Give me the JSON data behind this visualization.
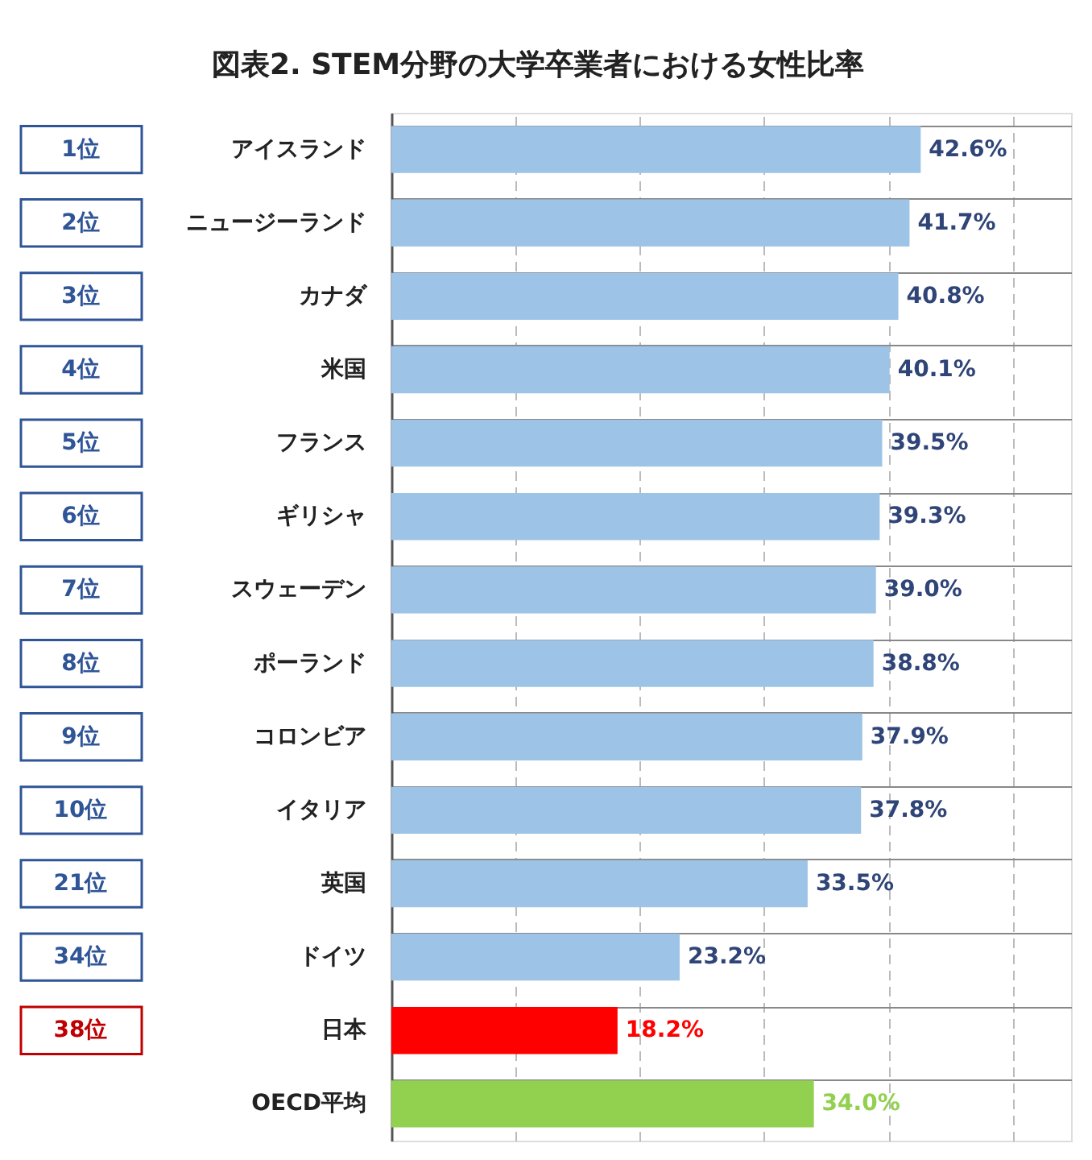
{
  "chart_data": {
    "type": "bar",
    "orientation": "horizontal",
    "title": "図表2. STEM分野の大学卒業者における女性比率",
    "categories": [
      "アイスランド",
      "ニュージーランド",
      "カナダ",
      "米国",
      "フランス",
      "ギリシャ",
      "スウェーデン",
      "ポーランド",
      "コロンビア",
      "イタリア",
      "英国",
      "ドイツ",
      "日本",
      "OECD平均"
    ],
    "values": [
      42.6,
      41.7,
      40.8,
      40.1,
      39.5,
      39.3,
      39.0,
      38.8,
      37.9,
      37.8,
      33.5,
      23.2,
      18.2,
      34.0
    ],
    "colors": [
      "#9dc3e6",
      "#9dc3e6",
      "#9dc3e6",
      "#9dc3e6",
      "#9dc3e6",
      "#9dc3e6",
      "#9dc3e6",
      "#9dc3e6",
      "#9dc3e6",
      "#9dc3e6",
      "#9dc3e6",
      "#9dc3e6",
      "#ff0000",
      "#92d050"
    ],
    "value_labels": [
      "42.6%",
      "41.7%",
      "40.8%",
      "40.1%",
      "39.5%",
      "39.3%",
      "39.0%",
      "38.8%",
      "37.9%",
      "37.8%",
      "33.5%",
      "23.2%",
      "18.2%",
      "34.0%"
    ],
    "annotations": [
      "1位",
      "2位",
      "3位",
      "4位",
      "5位",
      "6位",
      "7位",
      "8位",
      "9位",
      "10位",
      "21位",
      "34位",
      "38位"
    ],
    "xlim": [
      0,
      54.7
    ],
    "xticks": [
      {
        "value": 10,
        "label": null
      },
      {
        "value": 20,
        "label": null
      },
      {
        "value": 30,
        "label": null
      },
      {
        "value": 40,
        "label": null
      },
      {
        "value": 50,
        "label": null
      }
    ],
    "tick_labels": "y",
    "grid": true
  }
}
